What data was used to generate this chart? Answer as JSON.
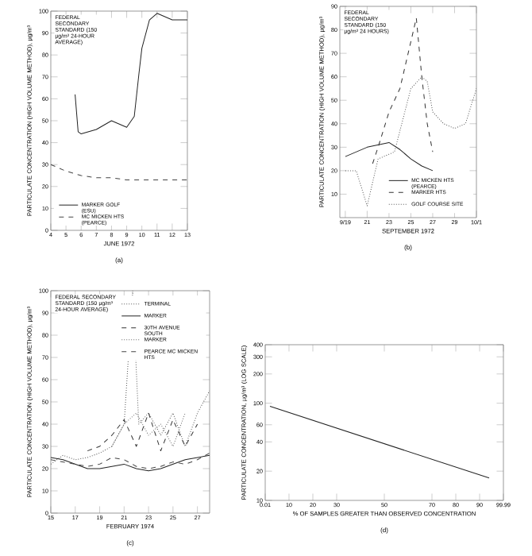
{
  "chart_data": [
    {
      "type": "line",
      "xlabel": "JUNE 1972",
      "ylabel": "PARTICULATE CONCENTRATION (HIGH VOLUME METHOD), µg/m³",
      "xlim": [
        4,
        13
      ],
      "ylim": [
        0,
        100
      ],
      "xticks": [
        4,
        5,
        6,
        7,
        8,
        9,
        10,
        11,
        12,
        13
      ],
      "yticks": [
        0,
        10,
        20,
        30,
        40,
        50,
        60,
        70,
        80,
        90,
        100
      ],
      "legend": "bottom left",
      "annotations": [
        "FEDERAL SECONDARY STANDARD (150 µg/m³ 24-HOUR AVERAGE)",
        "(a)"
      ],
      "series": [
        {
          "name": "MARKER GOLF (ESU)",
          "color": "#222222",
          "line_style": "solid",
          "x": [
            5.6,
            5.8,
            6,
            7,
            8,
            9,
            9.5,
            9.8,
            10,
            10.5,
            11,
            12,
            13
          ],
          "values": [
            62,
            45,
            44,
            46,
            50,
            47,
            52,
            71,
            83,
            96,
            99,
            96,
            96
          ]
        },
        {
          "name": "MC MICKEN HTS (PEARCE)",
          "color": "#444444",
          "line_style": "dashed",
          "x": [
            4,
            5,
            6,
            7,
            8,
            9,
            10,
            11,
            12,
            13
          ],
          "values": [
            30,
            27,
            25,
            24,
            24,
            23,
            23,
            23,
            23,
            23
          ]
        }
      ]
    },
    {
      "type": "line",
      "xlabel": "SEPTEMBER 1972",
      "ylabel": "PARTICULATE CONCENTRATION (HIGH VOLUME METHOD), µg/m³",
      "xlim": [
        18.5,
        31
      ],
      "ylim": [
        0,
        90
      ],
      "xticks": [
        {
          "value": 19,
          "label": "9/19"
        },
        21,
        23,
        25,
        27,
        29,
        {
          "value": 31,
          "label": "10/1"
        }
      ],
      "yticks": [
        10,
        20,
        30,
        40,
        50,
        60,
        70,
        80,
        90
      ],
      "legend": "bottom right",
      "annotations": [
        "FEDERAL SECONDARY STANDARD (150 µg/m³ 24 HOURS)",
        "(b)"
      ],
      "series": [
        {
          "name": "MC MICKEN HTS (PEARCE)",
          "color": "#222222",
          "line_style": "solid",
          "x": [
            19,
            21,
            23,
            24,
            25,
            26,
            27
          ],
          "values": [
            26,
            30,
            32,
            29,
            25,
            22,
            20
          ]
        },
        {
          "name": "MARKER HTS",
          "color": "#333333",
          "line_style": "dashed",
          "x": [
            21.5,
            22,
            23,
            24,
            25,
            25.5,
            26,
            26.5,
            27
          ],
          "values": [
            23,
            30,
            45,
            55,
            75,
            85,
            60,
            40,
            28
          ]
        },
        {
          "name": "GOLF COURSE SITE",
          "color": "#555555",
          "line_style": "dotted",
          "x": [
            19,
            20,
            21,
            22,
            23.5,
            25,
            26,
            26.5,
            27,
            28,
            29,
            30,
            31
          ],
          "values": [
            20,
            20,
            5,
            25,
            28,
            55,
            60,
            58,
            45,
            40,
            38,
            40,
            55
          ]
        }
      ]
    },
    {
      "type": "line",
      "xlabel": "FEBRUARY 1974",
      "ylabel": "PARTICULATE CONCENTRATION (HIGH VOLUME METHOD), µg/m³",
      "xlim": [
        15,
        28
      ],
      "ylim": [
        0,
        100
      ],
      "xticks": [
        15,
        17,
        19,
        21,
        23,
        25,
        27
      ],
      "yticks": [
        0,
        10,
        20,
        30,
        40,
        50,
        60,
        70,
        80,
        90,
        100
      ],
      "legend": "top right",
      "annotations": [
        "FEDERAL SECONDARY STANDARD (150 µg/m³ 24-HOUR AVERAGE)",
        "(c)"
      ],
      "series": [
        {
          "name": "TERMINAL",
          "color": "#555555",
          "line_style": "dotted",
          "x": [
            15,
            16,
            17,
            18,
            19,
            20,
            21,
            21.7,
            22.2,
            23,
            24,
            25,
            26,
            27,
            28
          ],
          "values": [
            22,
            26,
            24,
            25,
            27,
            30,
            40,
            100,
            40,
            45,
            35,
            45,
            30,
            45,
            55
          ]
        },
        {
          "name": "MARKER",
          "color": "#222222",
          "line_style": "solid",
          "x": [
            15,
            16,
            17,
            18,
            19,
            20,
            21,
            22,
            23,
            24,
            25,
            26,
            27,
            28
          ],
          "values": [
            25,
            24,
            22,
            20,
            20,
            21,
            22,
            20,
            19,
            20,
            22,
            24,
            25,
            26
          ]
        },
        {
          "name": "30TH AVENUE SOUTH",
          "color": "#333333",
          "line_style": "dashed",
          "x": [
            18,
            19,
            20,
            21,
            22,
            23,
            24,
            25,
            26,
            27
          ],
          "values": [
            28,
            30,
            35,
            42,
            30,
            45,
            28,
            42,
            30,
            40
          ]
        },
        {
          "name": "MARKER",
          "color": "#666666",
          "line_style": "dotted",
          "x": [
            20,
            21,
            22,
            23,
            24,
            25,
            26
          ],
          "values": [
            30,
            40,
            45,
            35,
            40,
            30,
            45
          ]
        },
        {
          "name": "PEARCE MC MICKEN HTS",
          "color": "#444444",
          "line_style": "dashed",
          "x": [
            15,
            16,
            17,
            18,
            19,
            20,
            21,
            22,
            23,
            24,
            25,
            26,
            27,
            28
          ],
          "values": [
            24,
            23,
            22,
            21,
            22,
            25,
            24,
            21,
            20,
            21,
            23,
            22,
            24,
            27
          ]
        }
      ]
    },
    {
      "type": "line",
      "log": "y",
      "xlabel": "% OF SAMPLES GREATER THAN OBSERVED CONCENTRATION",
      "ylabel": "PARTICULATE CONCENTRATION, µg/m³ (LOG SCALE)",
      "xlim": [
        0.01,
        99.99
      ],
      "ylim": [
        10,
        400
      ],
      "xticks": [
        0.01,
        10,
        20,
        30,
        50,
        70,
        80,
        90,
        99.99
      ],
      "yticks": [
        10,
        20,
        40,
        60,
        100,
        200,
        300,
        400
      ],
      "annotations": [
        "(d)"
      ],
      "series": [
        {
          "color": "#222222",
          "line_style": "solid",
          "x": [
            2,
            94
          ],
          "values": [
            93,
            17
          ]
        }
      ]
    }
  ]
}
